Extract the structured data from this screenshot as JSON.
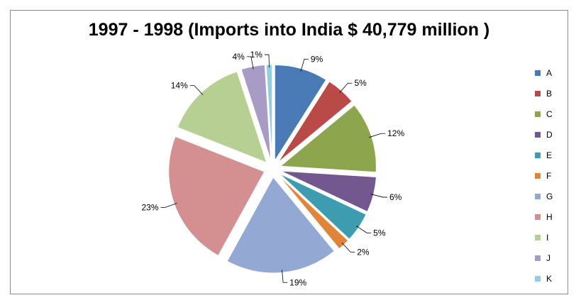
{
  "chart_data": {
    "type": "pie",
    "exploded": true,
    "title": "1997 - 1998 (Imports into India $ 40,779 million )",
    "categories": [
      "A",
      "B",
      "C",
      "D",
      "E",
      "F",
      "G",
      "H",
      "I",
      "J",
      "K"
    ],
    "values": [
      9,
      5,
      12,
      6,
      5,
      2,
      19,
      23,
      14,
      4,
      1
    ],
    "labels": [
      "9%",
      "5%",
      "12%",
      "6%",
      "5%",
      "2%",
      "19%",
      "23%",
      "14%",
      "4%",
      "1%"
    ],
    "colors": [
      "#4a7ab5",
      "#b94a48",
      "#8da64e",
      "#72588f",
      "#3e9cb0",
      "#e0843a",
      "#93a9d3",
      "#d49090",
      "#b6cf93",
      "#a89cc6",
      "#95cde0"
    ],
    "legend_position": "right"
  }
}
